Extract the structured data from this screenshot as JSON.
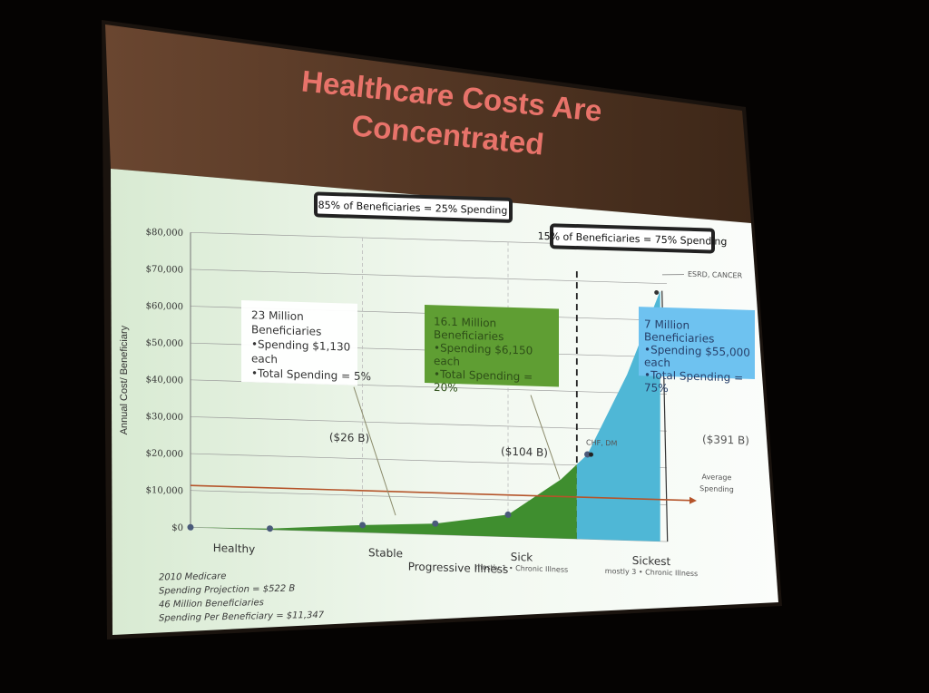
{
  "slide": {
    "title_line1": "Healthcare Costs Are",
    "title_line2": "Concentrated",
    "colors": {
      "title": "#e8736a",
      "header_band": "#5e3c28",
      "green_area": "#3f8e2f",
      "blue_area": "#4fb7d6",
      "average_line": "#b5542a",
      "green_callout": "#5f9e33",
      "blue_callout": "#6ec2f0"
    }
  },
  "chart_data": {
    "type": "area",
    "title": "Healthcare Costs Are Concentrated",
    "xlabel": "Progressive Illness",
    "ylabel": "Annual Cost/ Beneficiary",
    "ylim": [
      0,
      80000
    ],
    "y_ticks": [
      "$80,000",
      "$70,000",
      "$60,000",
      "$50,000",
      "$40,000",
      "$30,000",
      "$20,000",
      "$10,000",
      "$0"
    ],
    "y_tick_values": [
      80000,
      70000,
      60000,
      50000,
      40000,
      30000,
      20000,
      10000,
      0
    ],
    "grid": true,
    "categories": [
      {
        "label": "Healthy",
        "sub": ""
      },
      {
        "label": "Stable",
        "sub": ""
      },
      {
        "label": "Sick",
        "sub": "mostly 1 • Chronic Illness"
      },
      {
        "label": "Sickest",
        "sub": "mostly 3 • Chronic Illness"
      }
    ],
    "points": [
      {
        "x": 0.0,
        "y": 0
      },
      {
        "x": 0.6,
        "y": 300
      },
      {
        "x": 1.3,
        "y": 2000
      },
      {
        "x": 1.85,
        "y": 3000
      },
      {
        "x": 2.4,
        "y": 6000
      },
      {
        "x": 2.8,
        "y": 16000
      },
      {
        "x": 3.0,
        "y": 23000
      },
      {
        "x": 3.3,
        "y": 45000
      },
      {
        "x": 3.55,
        "y": 68000
      }
    ],
    "average": {
      "value": 11347,
      "label_line1": "Average",
      "label_line2": "Spending"
    },
    "point_labels": [
      {
        "text": "ESRD, CANCER"
      },
      {
        "text": "CHF, DM"
      }
    ],
    "headers": [
      {
        "text": "85% of Beneficiaries = 25% Spending"
      },
      {
        "text": "15% of Beneficiaries = 75% Spending"
      }
    ],
    "callouts": [
      {
        "lines": [
          "23 Million",
          "Beneficiaries",
          "•Spending $1,130",
          "each",
          "•Total Spending = 5%"
        ],
        "total": "($26 B)"
      },
      {
        "lines": [
          "16.1 Million",
          "Beneficiaries",
          "•Spending $6,150",
          "each",
          "•Total Spending =",
          "20%"
        ],
        "total": "($104 B)"
      },
      {
        "lines": [
          "7 Million",
          "Beneficiaries",
          "•Spending $55,000",
          "each",
          "•Total Spending =",
          "75%"
        ],
        "total": "($391 B)"
      }
    ],
    "notes": [
      "2010 Medicare",
      "Spending Projection = $522 B",
      "46 Million Beneficiaries",
      "Spending Per Beneficiary = $11,347"
    ]
  }
}
